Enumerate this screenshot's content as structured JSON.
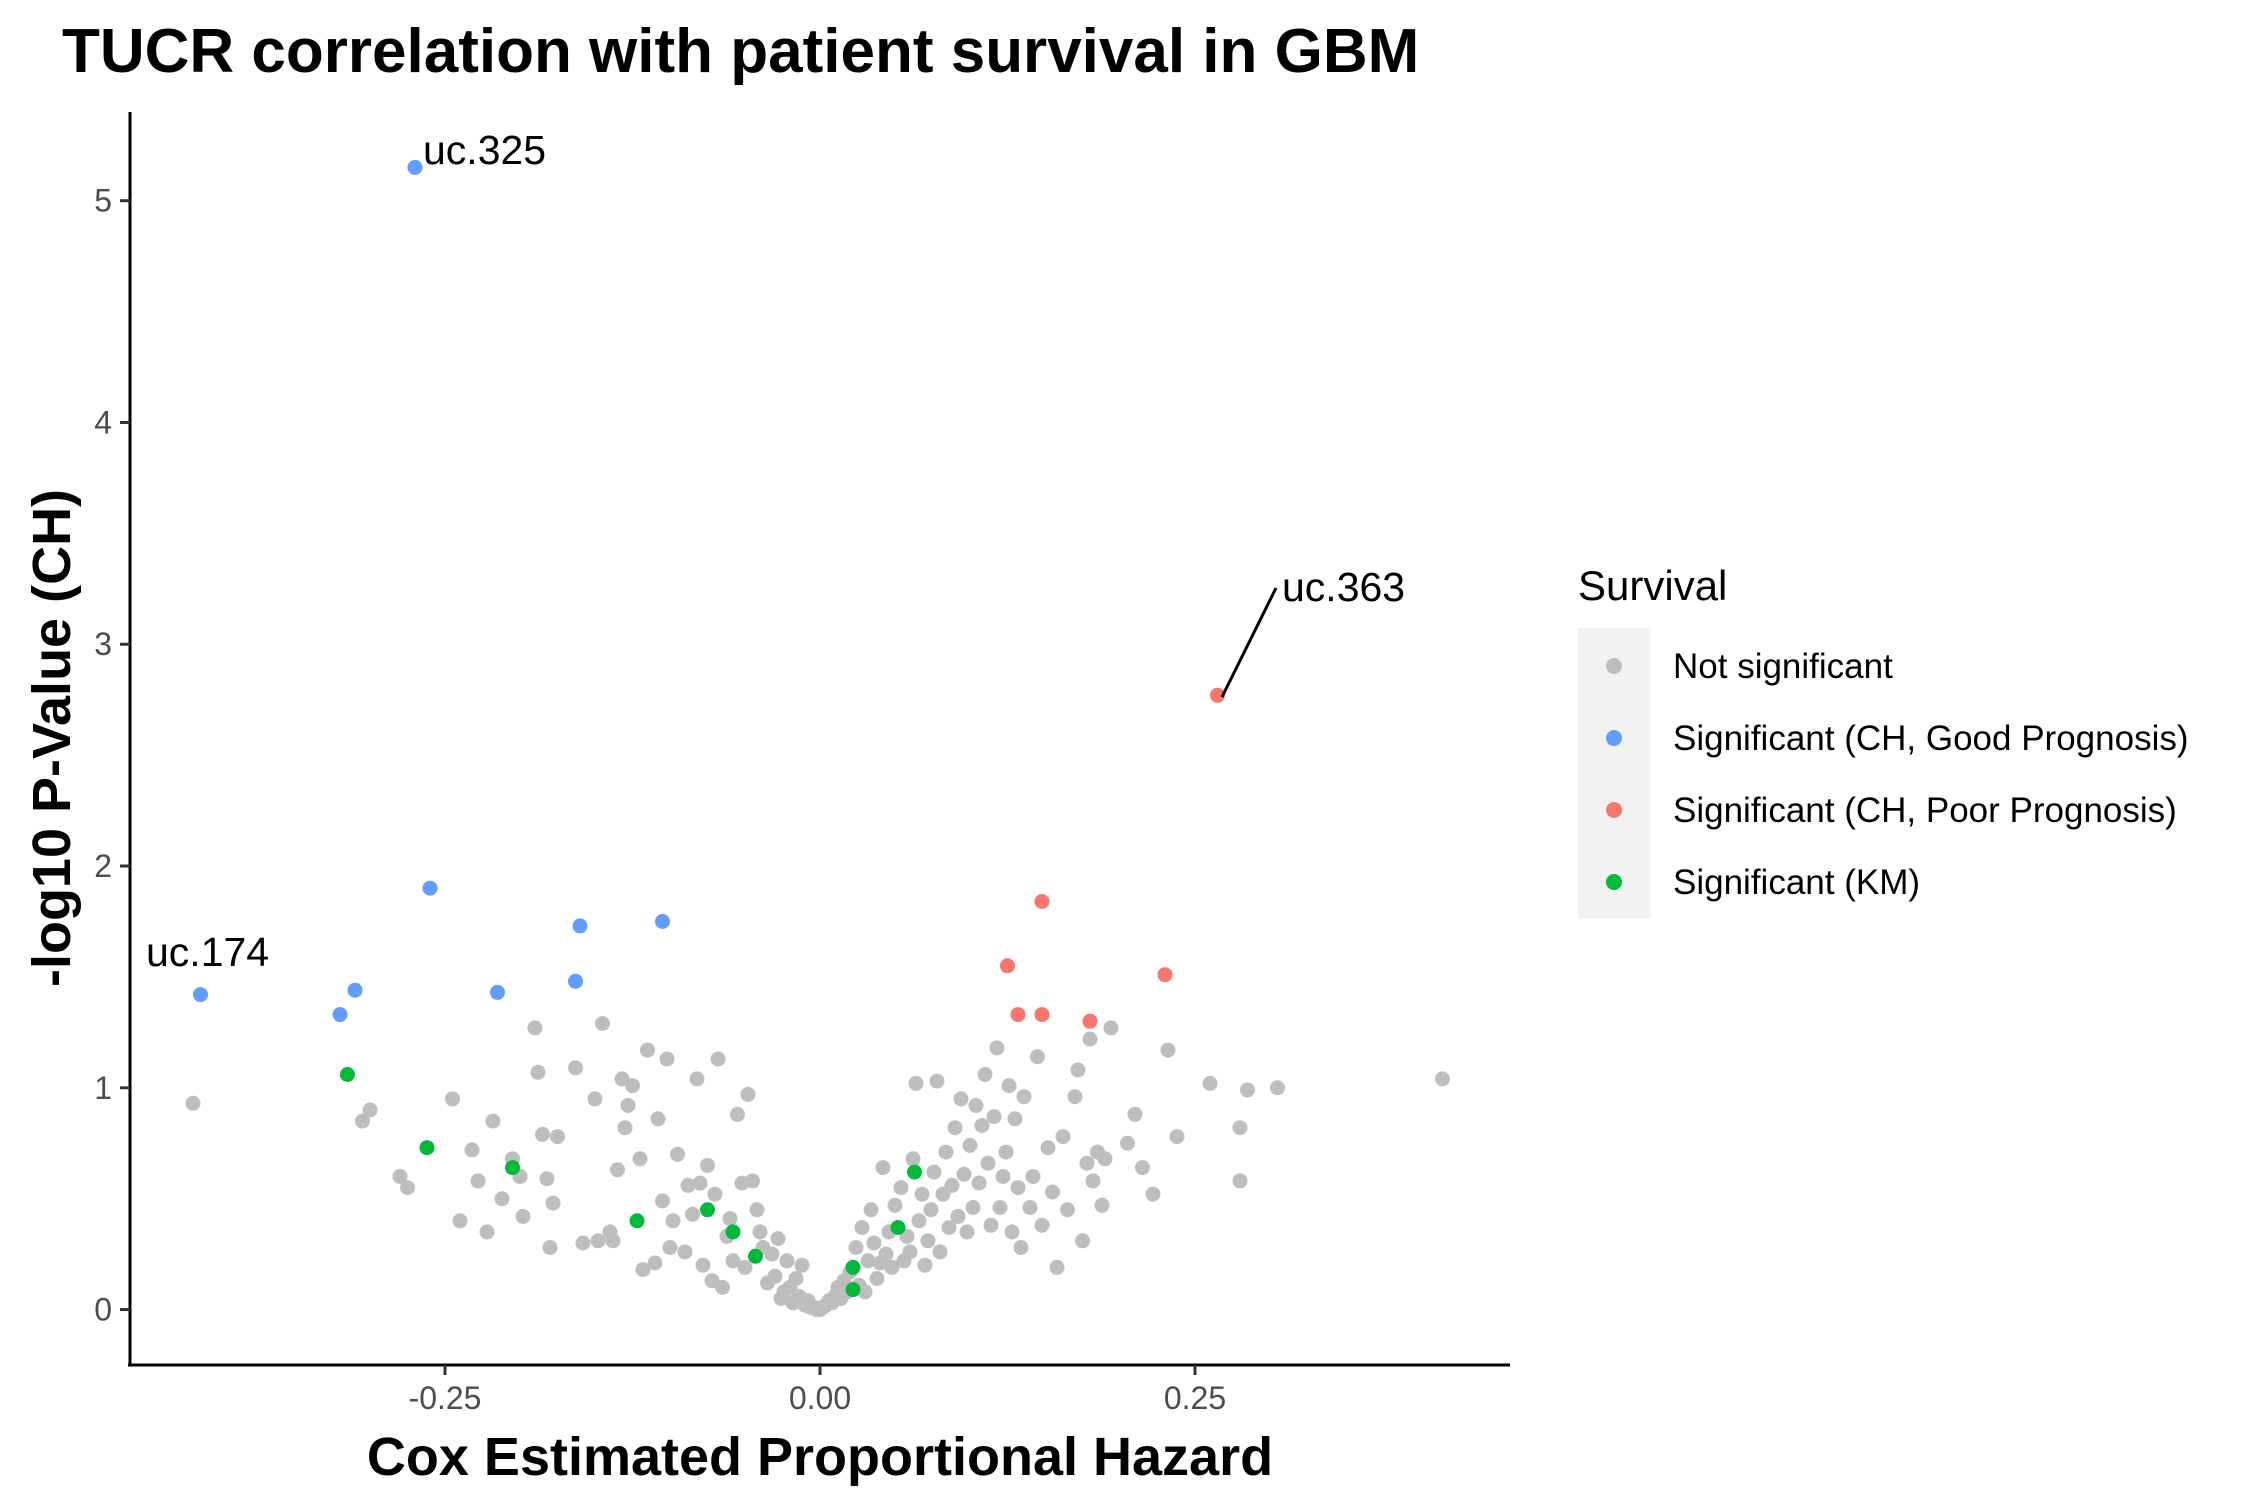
{
  "chart_data": {
    "type": "scatter",
    "title": "TUCR correlation with patient survival in GBM",
    "xlabel": "Cox Estimated Proportional Hazard",
    "ylabel": "-log10 P-Value (CH)",
    "xlim": [
      -0.46,
      0.46
    ],
    "ylim": [
      -0.25,
      5.4
    ],
    "x_ticks": [
      -0.25,
      0.0,
      0.25
    ],
    "x_tick_labels": [
      "-0.25",
      "0.00",
      "0.25"
    ],
    "y_ticks": [
      0,
      1,
      2,
      3,
      4,
      5
    ],
    "y_tick_labels": [
      "0",
      "1",
      "2",
      "3",
      "4",
      "5"
    ],
    "grid": false,
    "legend": {
      "title": "Survival",
      "placement": "right",
      "entries": [
        {
          "label": "Not significant",
          "color": "#BEBEBE"
        },
        {
          "label": "Significant (CH, Good Prognosis)",
          "color": "#619CFF"
        },
        {
          "label": "Significant (CH, Poor Prognosis)",
          "color": "#F8766D"
        },
        {
          "label": "Significant (KM)",
          "color": "#00BA38"
        }
      ]
    },
    "annotations": [
      {
        "text": "uc.325",
        "x": -0.27,
        "y": 5.15
      },
      {
        "text": "uc.363",
        "x": 0.265,
        "y": 2.77
      },
      {
        "text": "uc.174",
        "x": -0.413,
        "y": 1.42
      }
    ],
    "series": [
      {
        "name": "Significant (CH, Good Prognosis)",
        "color": "#619CFF",
        "points": [
          [
            -0.27,
            5.15
          ],
          [
            -0.26,
            1.9
          ],
          [
            -0.16,
            1.73
          ],
          [
            -0.105,
            1.75
          ],
          [
            -0.413,
            1.42
          ],
          [
            -0.31,
            1.44
          ],
          [
            -0.215,
            1.43
          ],
          [
            -0.163,
            1.48
          ],
          [
            -0.32,
            1.33
          ]
        ]
      },
      {
        "name": "Significant (CH, Poor Prognosis)",
        "color": "#F8766D",
        "points": [
          [
            0.265,
            2.77
          ],
          [
            0.148,
            1.84
          ],
          [
            0.125,
            1.55
          ],
          [
            0.23,
            1.51
          ],
          [
            0.132,
            1.33
          ],
          [
            0.148,
            1.33
          ],
          [
            0.18,
            1.3
          ]
        ]
      },
      {
        "name": "Significant (KM)",
        "color": "#00BA38",
        "points": [
          [
            -0.315,
            1.06
          ],
          [
            -0.262,
            0.73
          ],
          [
            -0.205,
            0.64
          ],
          [
            -0.122,
            0.4
          ],
          [
            -0.075,
            0.45
          ],
          [
            -0.058,
            0.35
          ],
          [
            -0.043,
            0.24
          ],
          [
            0.022,
            0.19
          ],
          [
            0.022,
            0.09
          ],
          [
            0.052,
            0.37
          ],
          [
            0.063,
            0.62
          ]
        ]
      },
      {
        "name": "Not significant",
        "color": "#BEBEBE",
        "points": [
          [
            -0.418,
            0.93
          ],
          [
            -0.3,
            0.9
          ],
          [
            -0.305,
            0.85
          ],
          [
            -0.28,
            0.6
          ],
          [
            -0.275,
            0.55
          ],
          [
            -0.245,
            0.95
          ],
          [
            -0.24,
            0.4
          ],
          [
            -0.232,
            0.72
          ],
          [
            -0.228,
            0.58
          ],
          [
            -0.222,
            0.35
          ],
          [
            -0.218,
            0.85
          ],
          [
            -0.212,
            0.5
          ],
          [
            -0.205,
            0.68
          ],
          [
            -0.2,
            0.6
          ],
          [
            -0.198,
            0.42
          ],
          [
            -0.19,
            1.27
          ],
          [
            -0.188,
            1.07
          ],
          [
            -0.185,
            0.79
          ],
          [
            -0.182,
            0.59
          ],
          [
            -0.18,
            0.28
          ],
          [
            -0.178,
            0.48
          ],
          [
            -0.175,
            0.78
          ],
          [
            -0.163,
            1.09
          ],
          [
            -0.158,
            0.3
          ],
          [
            -0.15,
            0.95
          ],
          [
            -0.148,
            0.31
          ],
          [
            -0.145,
            1.29
          ],
          [
            -0.14,
            0.35
          ],
          [
            -0.138,
            0.31
          ],
          [
            -0.135,
            0.63
          ],
          [
            -0.132,
            1.04
          ],
          [
            -0.13,
            0.82
          ],
          [
            -0.128,
            0.92
          ],
          [
            -0.125,
            1.01
          ],
          [
            -0.12,
            0.68
          ],
          [
            -0.118,
            0.18
          ],
          [
            -0.115,
            1.17
          ],
          [
            -0.11,
            0.21
          ],
          [
            -0.108,
            0.86
          ],
          [
            -0.105,
            0.49
          ],
          [
            -0.102,
            1.13
          ],
          [
            -0.1,
            0.28
          ],
          [
            -0.098,
            0.4
          ],
          [
            -0.095,
            0.7
          ],
          [
            -0.09,
            0.26
          ],
          [
            -0.088,
            0.56
          ],
          [
            -0.085,
            0.43
          ],
          [
            -0.082,
            1.04
          ],
          [
            -0.08,
            0.57
          ],
          [
            -0.078,
            0.2
          ],
          [
            -0.075,
            0.65
          ],
          [
            -0.072,
            0.13
          ],
          [
            -0.07,
            0.52
          ],
          [
            -0.068,
            1.13
          ],
          [
            -0.065,
            0.1
          ],
          [
            -0.062,
            0.33
          ],
          [
            -0.06,
            0.41
          ],
          [
            -0.058,
            0.22
          ],
          [
            -0.055,
            0.88
          ],
          [
            -0.052,
            0.57
          ],
          [
            -0.05,
            0.19
          ],
          [
            -0.048,
            0.97
          ],
          [
            -0.045,
            0.58
          ],
          [
            -0.042,
            0.45
          ],
          [
            -0.04,
            0.35
          ],
          [
            -0.038,
            0.28
          ],
          [
            -0.035,
            0.12
          ],
          [
            -0.032,
            0.25
          ],
          [
            -0.03,
            0.15
          ],
          [
            -0.028,
            0.32
          ],
          [
            -0.026,
            0.05
          ],
          [
            -0.024,
            0.08
          ],
          [
            -0.022,
            0.22
          ],
          [
            -0.02,
            0.1
          ],
          [
            -0.018,
            0.03
          ],
          [
            -0.016,
            0.14
          ],
          [
            -0.014,
            0.06
          ],
          [
            -0.012,
            0.2
          ],
          [
            -0.01,
            0.02
          ],
          [
            -0.008,
            0.04
          ],
          [
            -0.006,
            0.01
          ],
          [
            -0.004,
            0.01
          ],
          [
            -0.002,
            0.0
          ],
          [
            0.0,
            0.0
          ],
          [
            0.002,
            0.01
          ],
          [
            0.004,
            0.02
          ],
          [
            0.006,
            0.04
          ],
          [
            0.008,
            0.03
          ],
          [
            0.01,
            0.06
          ],
          [
            0.012,
            0.1
          ],
          [
            0.014,
            0.05
          ],
          [
            0.016,
            0.13
          ],
          [
            0.018,
            0.08
          ],
          [
            0.02,
            0.17
          ],
          [
            0.024,
            0.28
          ],
          [
            0.026,
            0.11
          ],
          [
            0.028,
            0.37
          ],
          [
            0.03,
            0.08
          ],
          [
            0.032,
            0.22
          ],
          [
            0.034,
            0.45
          ],
          [
            0.036,
            0.3
          ],
          [
            0.038,
            0.14
          ],
          [
            0.04,
            0.21
          ],
          [
            0.042,
            0.64
          ],
          [
            0.044,
            0.25
          ],
          [
            0.046,
            0.35
          ],
          [
            0.048,
            0.19
          ],
          [
            0.05,
            0.47
          ],
          [
            0.054,
            0.55
          ],
          [
            0.056,
            0.22
          ],
          [
            0.058,
            0.33
          ],
          [
            0.06,
            0.26
          ],
          [
            0.062,
            0.68
          ],
          [
            0.064,
            1.02
          ],
          [
            0.066,
            0.4
          ],
          [
            0.068,
            0.52
          ],
          [
            0.07,
            0.2
          ],
          [
            0.072,
            0.31
          ],
          [
            0.074,
            0.45
          ],
          [
            0.076,
            0.62
          ],
          [
            0.078,
            1.03
          ],
          [
            0.08,
            0.26
          ],
          [
            0.082,
            0.52
          ],
          [
            0.084,
            0.71
          ],
          [
            0.086,
            0.37
          ],
          [
            0.088,
            0.56
          ],
          [
            0.09,
            0.82
          ],
          [
            0.092,
            0.42
          ],
          [
            0.094,
            0.95
          ],
          [
            0.096,
            0.61
          ],
          [
            0.098,
            0.35
          ],
          [
            0.1,
            0.74
          ],
          [
            0.102,
            0.46
          ],
          [
            0.104,
            0.92
          ],
          [
            0.106,
            0.57
          ],
          [
            0.108,
            0.83
          ],
          [
            0.11,
            1.06
          ],
          [
            0.112,
            0.66
          ],
          [
            0.114,
            0.38
          ],
          [
            0.116,
            0.87
          ],
          [
            0.118,
            1.18
          ],
          [
            0.12,
            0.46
          ],
          [
            0.122,
            0.6
          ],
          [
            0.124,
            0.71
          ],
          [
            0.126,
            1.01
          ],
          [
            0.128,
            0.35
          ],
          [
            0.13,
            0.86
          ],
          [
            0.132,
            0.55
          ],
          [
            0.134,
            0.28
          ],
          [
            0.136,
            0.96
          ],
          [
            0.14,
            0.46
          ],
          [
            0.142,
            0.6
          ],
          [
            0.145,
            1.14
          ],
          [
            0.148,
            0.38
          ],
          [
            0.152,
            0.73
          ],
          [
            0.155,
            0.53
          ],
          [
            0.158,
            0.19
          ],
          [
            0.162,
            0.78
          ],
          [
            0.165,
            0.45
          ],
          [
            0.17,
            0.96
          ],
          [
            0.172,
            1.08
          ],
          [
            0.175,
            0.31
          ],
          [
            0.178,
            0.66
          ],
          [
            0.18,
            1.22
          ],
          [
            0.182,
            0.58
          ],
          [
            0.185,
            0.71
          ],
          [
            0.188,
            0.47
          ],
          [
            0.19,
            0.68
          ],
          [
            0.194,
            1.27
          ],
          [
            0.205,
            0.75
          ],
          [
            0.21,
            0.88
          ],
          [
            0.215,
            0.64
          ],
          [
            0.222,
            0.52
          ],
          [
            0.232,
            1.17
          ],
          [
            0.238,
            0.78
          ],
          [
            0.26,
            1.02
          ],
          [
            0.28,
            0.82
          ],
          [
            0.285,
            0.99
          ],
          [
            0.28,
            0.58
          ],
          [
            0.305,
            1.0
          ],
          [
            0.415,
            1.04
          ]
        ]
      }
    ]
  }
}
